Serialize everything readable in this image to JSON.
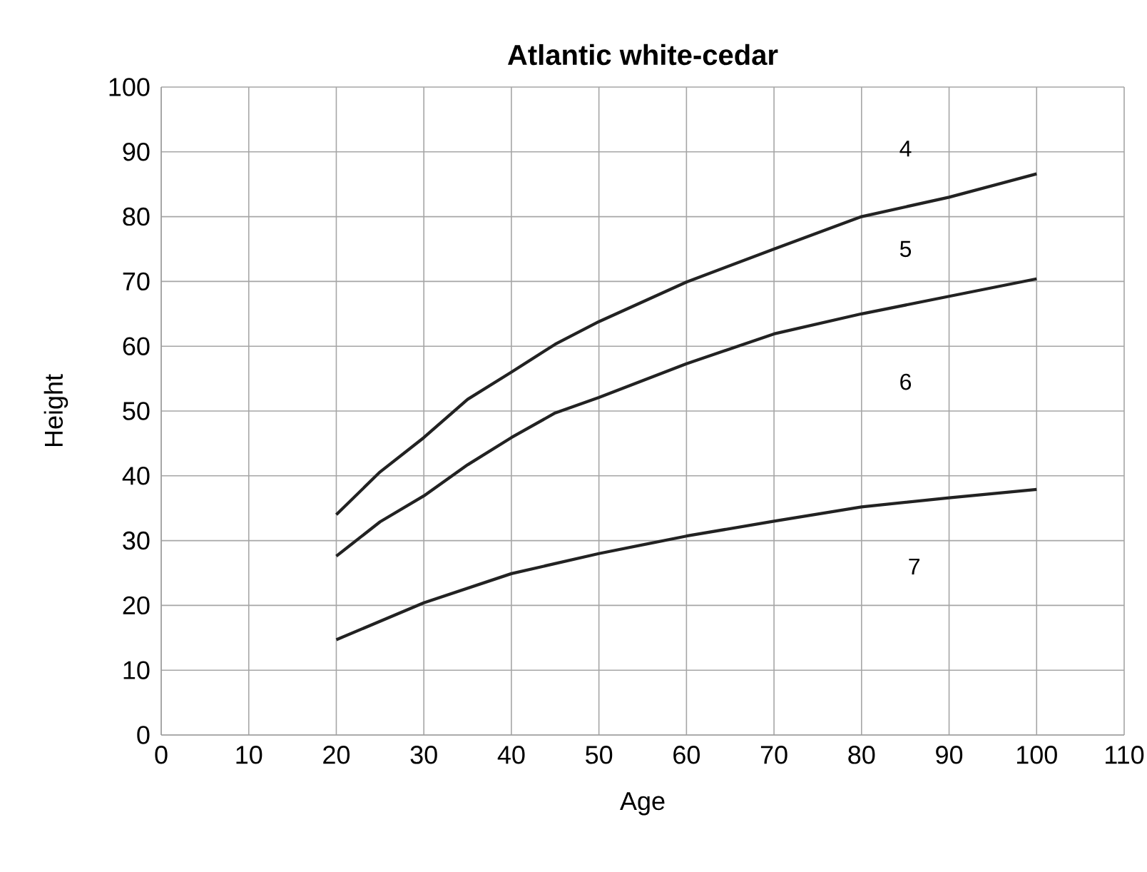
{
  "chart_data": {
    "type": "line",
    "title": "Atlantic white-cedar",
    "xlabel": "Age",
    "ylabel": "Height",
    "x": [
      20,
      25,
      30,
      35,
      40,
      45,
      50,
      60,
      70,
      80,
      90,
      100
    ],
    "series": [
      {
        "color": "#222222",
        "values": [
          34.0,
          40.6,
          45.9,
          51.8,
          56.0,
          60.3,
          63.8,
          69.9,
          75.0,
          80.0,
          83.0,
          86.6
        ]
      },
      {
        "color": "#222222",
        "values": [
          27.6,
          32.9,
          36.9,
          41.7,
          45.9,
          49.7,
          52.1,
          57.3,
          61.9,
          65.0,
          67.7,
          70.4
        ]
      },
      {
        "color": "#222222",
        "x": [
          20,
          30,
          40,
          50,
          60,
          70,
          80,
          90,
          100
        ],
        "values": [
          14.7,
          20.4,
          24.9,
          28.0,
          30.7,
          33.0,
          35.2,
          36.6,
          37.9
        ]
      }
    ],
    "annotations": [
      "4",
      "5",
      "6",
      "7"
    ],
    "xlim": [
      0,
      110
    ],
    "ylim": [
      0,
      100
    ],
    "xticks": [
      0,
      10,
      20,
      30,
      40,
      50,
      60,
      70,
      80,
      90,
      100,
      110
    ],
    "yticks": [
      0,
      10,
      20,
      30,
      40,
      50,
      60,
      70,
      80,
      90,
      100
    ],
    "grid": true,
    "marker": "none",
    "line_style": "solid"
  }
}
